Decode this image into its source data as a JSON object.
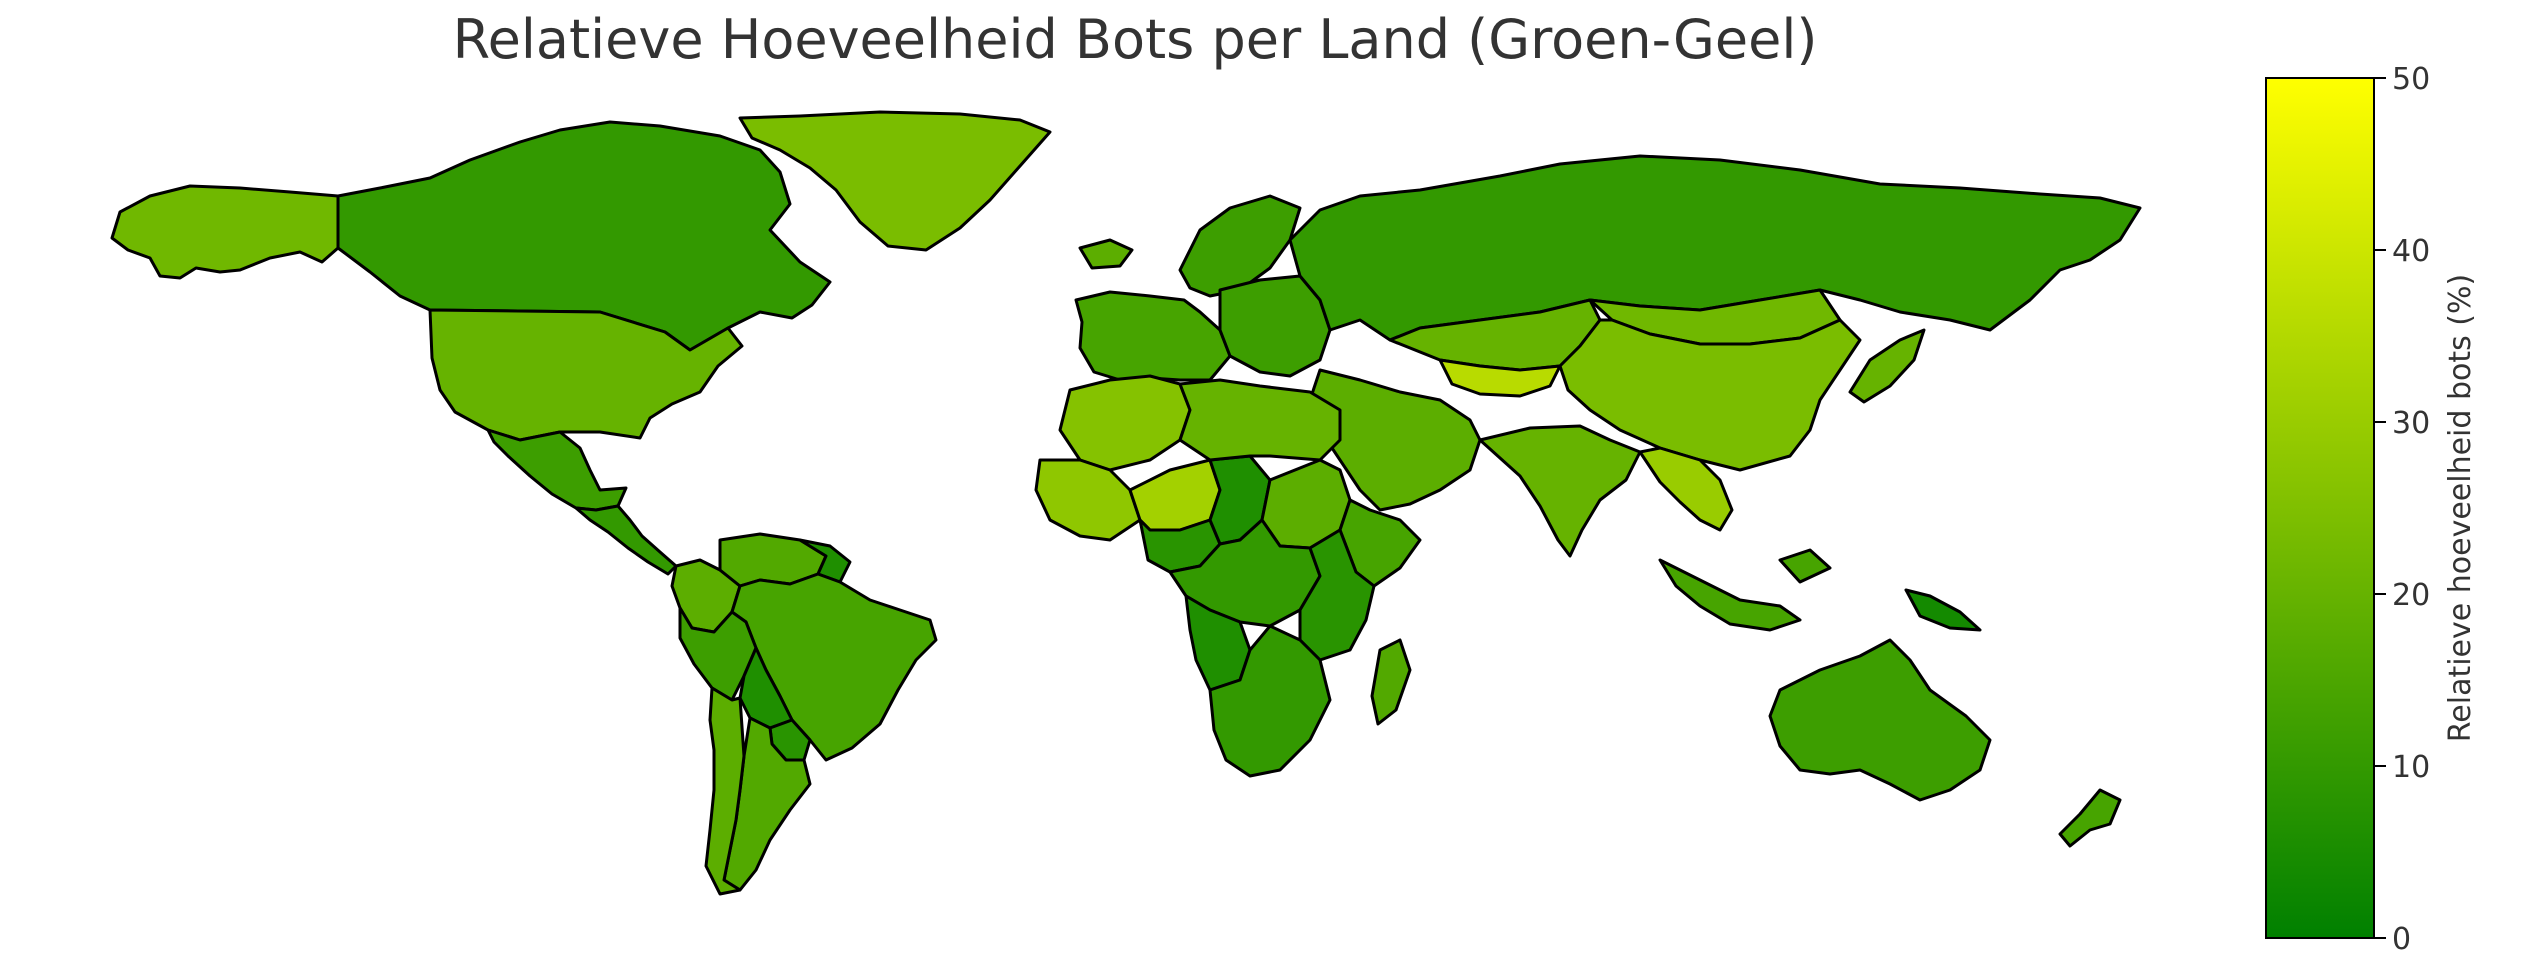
{
  "title": "Relatieve Hoeveelheid Bots per Land (Groen-Geel)",
  "colorbar": {
    "label": "Relatieve hoeveelheid bots (%)",
    "min": 0,
    "max": 50,
    "ticks": [
      "0",
      "10",
      "20",
      "30",
      "40",
      "50"
    ],
    "color_low": "#008000",
    "color_high": "#ffff00"
  },
  "map": {
    "projection": "plate-carree",
    "edge_color": "#000000",
    "ocean_color": "#ffffff",
    "country_values": [
      {
        "region": "Alaska (USA)",
        "value": 22
      },
      {
        "region": "Canada",
        "value": 10
      },
      {
        "region": "Greenland",
        "value": 24
      },
      {
        "region": "United States",
        "value": 20
      },
      {
        "region": "Mexico",
        "value": 12
      },
      {
        "region": "Central America",
        "value": 10
      },
      {
        "region": "Colombia",
        "value": 18
      },
      {
        "region": "Venezuela",
        "value": 16
      },
      {
        "region": "Guyana/Suriname",
        "value": 6
      },
      {
        "region": "Brazil",
        "value": 14
      },
      {
        "region": "Peru",
        "value": 12
      },
      {
        "region": "Bolivia",
        "value": 6
      },
      {
        "region": "Paraguay",
        "value": 8
      },
      {
        "region": "Argentina",
        "value": 16
      },
      {
        "region": "Chile",
        "value": 18
      },
      {
        "region": "Iceland",
        "value": 18
      },
      {
        "region": "Scandinavia",
        "value": 12
      },
      {
        "region": "Western Europe",
        "value": 14
      },
      {
        "region": "Eastern Europe",
        "value": 12
      },
      {
        "region": "Russia",
        "value": 10
      },
      {
        "region": "Kazakhstan",
        "value": 20
      },
      {
        "region": "Turkmenistan/Uzbekistan",
        "value": 36
      },
      {
        "region": "Mongolia",
        "value": 22
      },
      {
        "region": "China",
        "value": 24
      },
      {
        "region": "Japan",
        "value": 20
      },
      {
        "region": "India",
        "value": 20
      },
      {
        "region": "Middle East",
        "value": 18
      },
      {
        "region": "Indochina",
        "value": 30
      },
      {
        "region": "Indonesia",
        "value": 14
      },
      {
        "region": "Papua New Guinea",
        "value": 4
      },
      {
        "region": "Australia",
        "value": 12
      },
      {
        "region": "New Zealand",
        "value": 14
      },
      {
        "region": "Northwest Africa",
        "value": 26
      },
      {
        "region": "Mali/Mauritania",
        "value": 28
      },
      {
        "region": "Niger",
        "value": 32
      },
      {
        "region": "Nigeria",
        "value": 8
      },
      {
        "region": "Chad",
        "value": 6
      },
      {
        "region": "Libya/Egypt",
        "value": 20
      },
      {
        "region": "Sudan",
        "value": 18
      },
      {
        "region": "Horn of Africa",
        "value": 14
      },
      {
        "region": "Central Africa",
        "value": 10
      },
      {
        "region": "East Africa",
        "value": 8
      },
      {
        "region": "Angola",
        "value": 6
      },
      {
        "region": "Southern Africa",
        "value": 10
      },
      {
        "region": "Madagascar",
        "value": 16
      }
    ]
  }
}
